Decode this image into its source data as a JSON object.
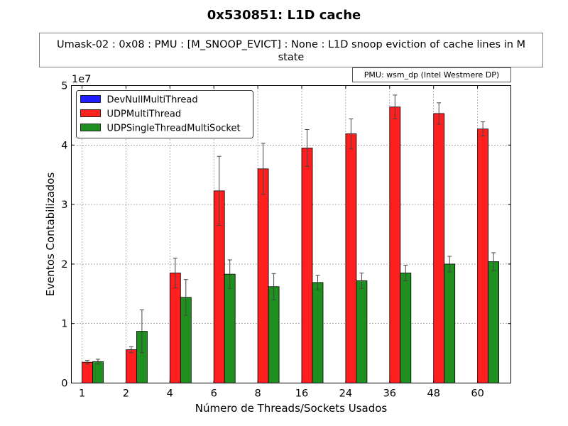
{
  "chart_data": {
    "type": "bar",
    "title": "0x530851: L1D cache",
    "subtitle_lines": [
      "Umask-02 : 0x08 : PMU : [M_SNOOP_EVICT] : None : L1D snoop eviction of cache lines in M",
      "state"
    ],
    "pmu_label": "PMU: wsm_dp (Intel Westmere DP)",
    "xlabel": "Número de Threads/Sockets Usados",
    "ylabel": "Eventos Contabilizados",
    "y_scale_label": "1e7",
    "y_scale": 10000000,
    "ylim": [
      0,
      50000000
    ],
    "yticks": [
      0,
      1,
      2,
      3,
      4,
      5
    ],
    "grid": true,
    "legend_position": "top-left",
    "categories": [
      "1",
      "2",
      "4",
      "6",
      "8",
      "16",
      "24",
      "36",
      "48",
      "60"
    ],
    "series": [
      {
        "name": "DevNullMultiThread",
        "color": "#1f1fff",
        "values": [
          0,
          0,
          0,
          0,
          0,
          0,
          0,
          0,
          0,
          0
        ],
        "errors": [
          0,
          0,
          0,
          0,
          0,
          0,
          0,
          0,
          0,
          0
        ]
      },
      {
        "name": "UDPMultiThread",
        "color": "#ff1f1f",
        "values": [
          3500000,
          5600000,
          18500000,
          32300000,
          36000000,
          39500000,
          41900000,
          46400000,
          45300000,
          42700000
        ],
        "errors": [
          300000,
          500000,
          2500000,
          5800000,
          4300000,
          3100000,
          2500000,
          2000000,
          1800000,
          1200000
        ]
      },
      {
        "name": "UDPSingleThreadMultiSocket",
        "color": "#1f8f1f",
        "values": [
          3600000,
          8700000,
          14400000,
          18300000,
          16200000,
          16900000,
          17200000,
          18500000,
          20000000,
          20400000
        ],
        "errors": [
          400000,
          3600000,
          3000000,
          2400000,
          2200000,
          1200000,
          1300000,
          1300000,
          1300000,
          1500000
        ]
      }
    ]
  }
}
